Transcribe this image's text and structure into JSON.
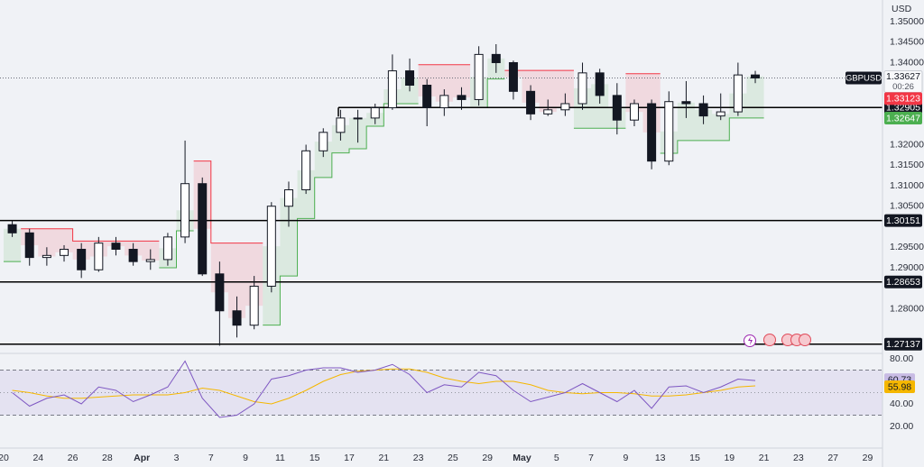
{
  "chart_data": {
    "type": "candlestick",
    "currency": "USD",
    "symbol": "GBPUSD",
    "countdown": "00:26",
    "categories": [
      "20",
      null,
      "24",
      null,
      "26",
      null,
      "28",
      null,
      "Apr",
      null,
      "3",
      null,
      "7",
      null,
      "9",
      null,
      "11",
      null,
      "15",
      null,
      "17",
      null,
      "21",
      null,
      "23",
      null,
      "25",
      null,
      "29",
      null,
      "May",
      null,
      "5",
      null,
      "7",
      null,
      "9",
      null,
      "13",
      null,
      "15",
      null,
      "19",
      null,
      "21",
      null,
      "23",
      null,
      "27",
      null,
      "29"
    ],
    "open": [
      1.3005,
      1.2985,
      1.2925,
      1.293,
      1.2945,
      1.2895,
      1.296,
      1.2945,
      1.2915,
      1.292,
      1.2975,
      1.3105,
      1.2885,
      1.2795,
      1.276,
      1.2855,
      1.305,
      1.309,
      1.3185,
      1.323,
      1.3265,
      1.3265,
      1.329,
      1.338,
      1.3345,
      1.329,
      1.332,
      1.331,
      1.342,
      1.34,
      1.333,
      1.3275,
      1.3285,
      1.33,
      1.3375,
      1.332,
      1.326,
      1.33,
      1.316,
      1.3305,
      1.33,
      1.327,
      1.328,
      1.337,
      null,
      null,
      null,
      null,
      null,
      null,
      null
    ],
    "high": [
      1.3015,
      1.2995,
      1.295,
      1.2955,
      1.296,
      1.2975,
      1.2975,
      1.296,
      1.2945,
      1.2985,
      1.321,
      1.312,
      1.2915,
      1.283,
      1.288,
      1.306,
      1.311,
      1.32,
      1.324,
      1.3285,
      1.3285,
      1.33,
      1.342,
      1.341,
      1.336,
      1.3335,
      1.334,
      1.344,
      1.3445,
      1.3405,
      1.3345,
      1.331,
      1.3325,
      1.34,
      1.3385,
      1.335,
      1.331,
      1.331,
      1.333,
      1.3355,
      1.332,
      1.3325,
      1.34,
      1.338,
      null,
      null,
      null,
      null,
      null,
      null,
      null
    ],
    "low": [
      1.2975,
      1.2905,
      1.2905,
      1.2915,
      1.2875,
      1.289,
      1.293,
      1.2905,
      1.2895,
      1.2905,
      1.296,
      1.288,
      1.271,
      1.273,
      1.275,
      1.284,
      1.3,
      1.308,
      1.317,
      1.321,
      1.3205,
      1.325,
      1.3285,
      1.333,
      1.3245,
      1.327,
      1.3285,
      1.3295,
      1.3375,
      1.331,
      1.326,
      1.327,
      1.327,
      1.3285,
      1.33,
      1.3225,
      1.3245,
      1.314,
      1.315,
      1.3265,
      1.325,
      1.326,
      1.327,
      1.335,
      null,
      null,
      null,
      null,
      null,
      null,
      null
    ],
    "close": [
      1.2985,
      1.2925,
      1.293,
      1.2945,
      1.2895,
      1.296,
      1.2945,
      1.2915,
      1.292,
      1.2975,
      1.3105,
      1.2885,
      1.2795,
      1.276,
      1.2855,
      1.305,
      1.309,
      1.3185,
      1.323,
      1.3265,
      1.3265,
      1.329,
      1.338,
      1.3345,
      1.329,
      1.332,
      1.331,
      1.342,
      1.34,
      1.333,
      1.3275,
      1.3285,
      1.33,
      1.3375,
      1.332,
      1.326,
      1.33,
      1.316,
      1.3305,
      1.33,
      1.327,
      1.328,
      1.337,
      1.33627,
      null,
      null,
      null,
      null,
      null,
      null,
      null
    ],
    "last_price": 1.33627,
    "up_color": "#ffffff",
    "down_color": "#131722",
    "wick_color": "#131722",
    "ylim": [
      1.26736,
      1.35527
    ],
    "yticks": [
      {
        "value": 1.35,
        "label": "1.35000"
      },
      {
        "value": 1.345,
        "label": "1.34500"
      },
      {
        "value": 1.34,
        "label": "1.34000"
      },
      {
        "value": 1.32,
        "label": "1.32000"
      },
      {
        "value": 1.315,
        "label": "1.31500"
      },
      {
        "value": 1.31,
        "label": "1.31000"
      },
      {
        "value": 1.305,
        "label": "1.30500"
      },
      {
        "value": 1.295,
        "label": "1.29500"
      },
      {
        "value": 1.29,
        "label": "1.29000"
      },
      {
        "value": 1.28,
        "label": "1.28000"
      }
    ],
    "price_lines": [
      1.32905,
      1.30151,
      1.28653,
      1.27137
    ],
    "indicator_values": [
      {
        "value": 1.33123,
        "color": "#f23645"
      },
      {
        "value": 1.32647,
        "color": "#4caf50"
      }
    ],
    "supertrend": {
      "up_color": "#4caf50",
      "down_color": "#f23645",
      "up": [
        1.2915,
        null,
        null,
        null,
        null,
        null,
        null,
        null,
        null,
        1.29,
        1.299,
        null,
        null,
        null,
        null,
        1.276,
        1.288,
        1.302,
        1.312,
        1.318,
        1.319,
        1.3245,
        1.33,
        1.33,
        null,
        null,
        null,
        1.329,
        1.336,
        null,
        null,
        null,
        null,
        1.324,
        1.324,
        1.324,
        null,
        null,
        1.3179,
        1.321,
        1.321,
        1.321,
        1.3265,
        1.3265,
        null,
        null,
        null,
        null,
        null,
        null,
        null
      ],
      "down": [
        null,
        1.2995,
        1.2995,
        1.2995,
        1.2965,
        1.2965,
        1.2965,
        1.2965,
        1.2965,
        null,
        null,
        1.316,
        1.296,
        1.296,
        1.296,
        null,
        null,
        null,
        null,
        null,
        null,
        null,
        null,
        null,
        1.3395,
        1.3395,
        1.3395,
        null,
        null,
        1.3381,
        1.3381,
        1.3381,
        1.3381,
        null,
        null,
        null,
        1.3373,
        1.3373,
        null,
        null,
        null,
        null,
        null,
        null,
        null,
        null,
        null,
        null,
        null,
        null,
        null
      ]
    },
    "rsi": {
      "ylim": [
        2.4,
        86.4
      ],
      "yticks": [
        {
          "value": 80,
          "label": "80.00"
        },
        {
          "value": 40,
          "label": "40.00"
        },
        {
          "value": 20,
          "label": "20.00"
        }
      ],
      "band": [
        30,
        70
      ],
      "midline": 50,
      "band_color": "#7e57c2",
      "series": [
        {
          "color": "#7e57c2",
          "values": [
            50,
            38,
            45,
            48,
            40,
            55,
            52,
            42,
            48,
            55,
            78,
            45,
            28,
            30,
            40,
            62,
            65,
            70,
            72,
            72,
            68,
            70,
            75,
            66,
            50,
            57,
            55,
            68,
            65,
            52,
            42,
            46,
            50,
            58,
            50,
            42,
            52,
            36,
            55,
            56,
            50,
            55,
            62,
            60.73,
            null,
            null,
            null,
            null,
            null,
            null,
            null
          ]
        },
        {
          "color": "#f5b700",
          "values": [
            52,
            50,
            47,
            45,
            45,
            46,
            47,
            48,
            48,
            48,
            50,
            54,
            52,
            47,
            42,
            40,
            45,
            52,
            60,
            66,
            69,
            70,
            71,
            71,
            68,
            63,
            60,
            58,
            60,
            60,
            57,
            52,
            50,
            49,
            50,
            50,
            49,
            47,
            47,
            48,
            50,
            52,
            55,
            55.98,
            null,
            null,
            null,
            null,
            null,
            null,
            null
          ]
        }
      ]
    }
  }
}
